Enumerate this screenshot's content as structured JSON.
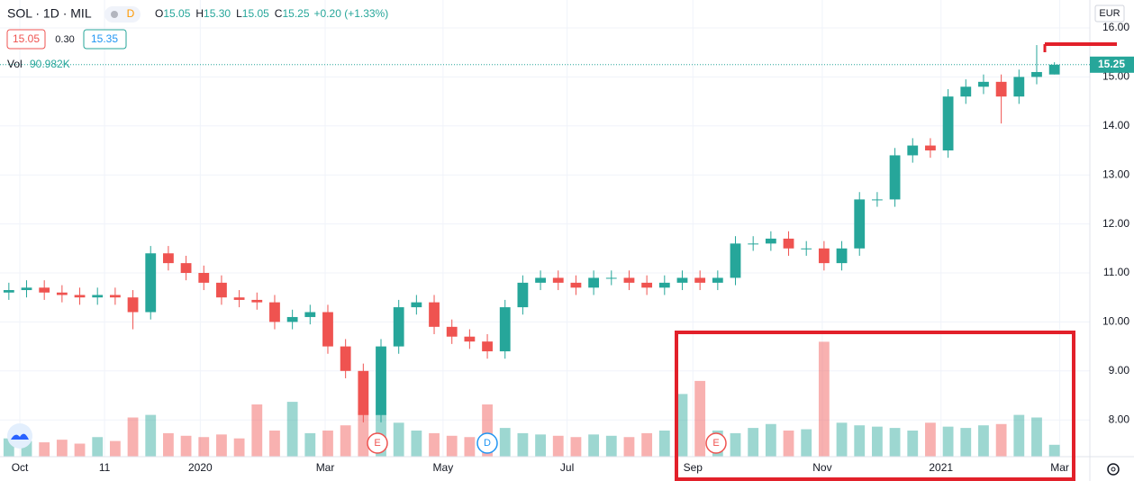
{
  "chart_data": {
    "type": "candlestick",
    "symbol": "SOL · 1D · MIL",
    "badge": "D",
    "ohlc": [
      {
        "label": "O",
        "value": "15.05"
      },
      {
        "label": "H",
        "value": "15.30"
      },
      {
        "label": "L",
        "value": "15.05"
      },
      {
        "label": "C",
        "value": "15.25"
      }
    ],
    "change": "+0.20 (+1.33%)",
    "bid": "15.05",
    "spread": "0.30",
    "ask": "15.35",
    "volume_label": "Vol",
    "volume_value": "90.982K",
    "currency": "EUR",
    "last_price": {
      "value": 15.25,
      "label": "15.25"
    },
    "events": [
      "E",
      "D",
      "E"
    ],
    "up_color": "#26a69a",
    "down_color": "#ef5350",
    "grid": true,
    "xlim": [
      -0.5,
      61
    ],
    "xticks": [
      {
        "value": 0.62,
        "label": "Oct"
      },
      {
        "value": 5.4,
        "label": "11"
      },
      {
        "value": 10.8,
        "label": "2020"
      },
      {
        "value": 17.85,
        "label": "Mar"
      },
      {
        "value": 24.5,
        "label": "May"
      },
      {
        "value": 31.5,
        "label": "Jul"
      },
      {
        "value": 38.6,
        "label": "Sep"
      },
      {
        "value": 45.9,
        "label": "Nov"
      },
      {
        "value": 52.6,
        "label": "2021"
      },
      {
        "value": 59.3,
        "label": "Mar"
      }
    ],
    "ylim": [
      7.25,
      16.57
    ],
    "yticks": [
      {
        "value": 8,
        "label": "8.00"
      },
      {
        "value": 9,
        "label": "9.00"
      },
      {
        "value": 10,
        "label": "10.00"
      },
      {
        "value": 11,
        "label": "11.00"
      },
      {
        "value": 12,
        "label": "12.00"
      },
      {
        "value": 13,
        "label": "13.00"
      },
      {
        "value": 14,
        "label": "14.00"
      },
      {
        "value": 15,
        "label": "15.00"
      },
      {
        "value": 16,
        "label": "16.00"
      }
    ],
    "volume_lim": [
      0,
      1000
    ],
    "open": [
      10.6,
      10.65,
      10.7,
      10.6,
      10.55,
      10.5,
      10.55,
      10.5,
      10.2,
      11.4,
      11.2,
      11.0,
      10.8,
      10.5,
      10.45,
      10.4,
      10.0,
      10.1,
      10.2,
      9.5,
      9.0,
      8.1,
      9.5,
      10.3,
      10.4,
      9.9,
      9.7,
      9.6,
      9.4,
      10.3,
      10.8,
      10.9,
      10.8,
      10.7,
      10.9,
      10.9,
      10.8,
      10.7,
      10.8,
      10.9,
      10.8,
      10.9,
      11.6,
      11.6,
      11.7,
      11.5,
      11.5,
      11.2,
      11.5,
      12.5,
      12.5,
      13.4,
      13.6,
      13.5,
      14.6,
      14.8,
      14.9,
      14.6,
      15.0,
      15.05
    ],
    "high": [
      10.8,
      10.85,
      10.85,
      10.75,
      10.7,
      10.7,
      10.7,
      10.65,
      11.55,
      11.55,
      11.35,
      11.15,
      10.95,
      10.65,
      10.6,
      10.55,
      10.25,
      10.35,
      10.35,
      9.65,
      9.15,
      9.65,
      10.45,
      10.55,
      10.55,
      10.05,
      9.85,
      9.75,
      10.45,
      10.95,
      11.05,
      11.05,
      10.95,
      11.05,
      11.05,
      11.05,
      10.95,
      10.95,
      11.05,
      11.05,
      11.05,
      11.75,
      11.75,
      11.85,
      11.85,
      11.65,
      11.65,
      11.65,
      12.65,
      12.65,
      13.55,
      13.75,
      13.75,
      14.75,
      14.95,
      15.05,
      15.05,
      15.15,
      15.65,
      15.3
    ],
    "low": [
      10.45,
      10.5,
      10.45,
      10.4,
      10.35,
      10.35,
      10.35,
      9.85,
      10.05,
      11.05,
      10.85,
      10.65,
      10.35,
      10.3,
      10.25,
      9.85,
      9.85,
      9.95,
      9.35,
      8.85,
      7.95,
      7.95,
      9.35,
      10.15,
      9.75,
      9.55,
      9.45,
      9.25,
      9.25,
      10.15,
      10.65,
      10.65,
      10.55,
      10.55,
      10.75,
      10.65,
      10.55,
      10.55,
      10.65,
      10.65,
      10.65,
      10.75,
      11.45,
      11.45,
      11.35,
      11.35,
      11.05,
      11.05,
      11.35,
      12.35,
      12.35,
      13.25,
      13.35,
      13.35,
      14.45,
      14.65,
      14.05,
      14.45,
      14.85,
      15.05
    ],
    "close": [
      10.65,
      10.7,
      10.6,
      10.55,
      10.5,
      10.55,
      10.5,
      10.2,
      11.4,
      11.2,
      11.0,
      10.8,
      10.5,
      10.45,
      10.4,
      10.0,
      10.1,
      10.2,
      9.5,
      9.0,
      8.1,
      9.5,
      10.3,
      10.4,
      9.9,
      9.7,
      9.6,
      9.4,
      10.3,
      10.8,
      10.9,
      10.8,
      10.7,
      10.9,
      10.9,
      10.8,
      10.7,
      10.8,
      10.9,
      10.8,
      10.9,
      11.6,
      11.6,
      11.7,
      11.5,
      11.5,
      11.2,
      11.5,
      12.5,
      12.5,
      13.4,
      13.6,
      13.5,
      14.6,
      14.8,
      14.9,
      14.6,
      15.0,
      15.1,
      15.25
    ],
    "volume": [
      140,
      120,
      110,
      130,
      100,
      150,
      120,
      300,
      320,
      180,
      160,
      150,
      170,
      140,
      400,
      200,
      420,
      180,
      200,
      240,
      350,
      330,
      260,
      200,
      180,
      160,
      150,
      400,
      220,
      180,
      170,
      160,
      150,
      170,
      160,
      150,
      180,
      200,
      480,
      580,
      200,
      180,
      220,
      250,
      200,
      210,
      880,
      260,
      240,
      230,
      220,
      200,
      260,
      230,
      220,
      240,
      250,
      320,
      300,
      91
    ]
  }
}
